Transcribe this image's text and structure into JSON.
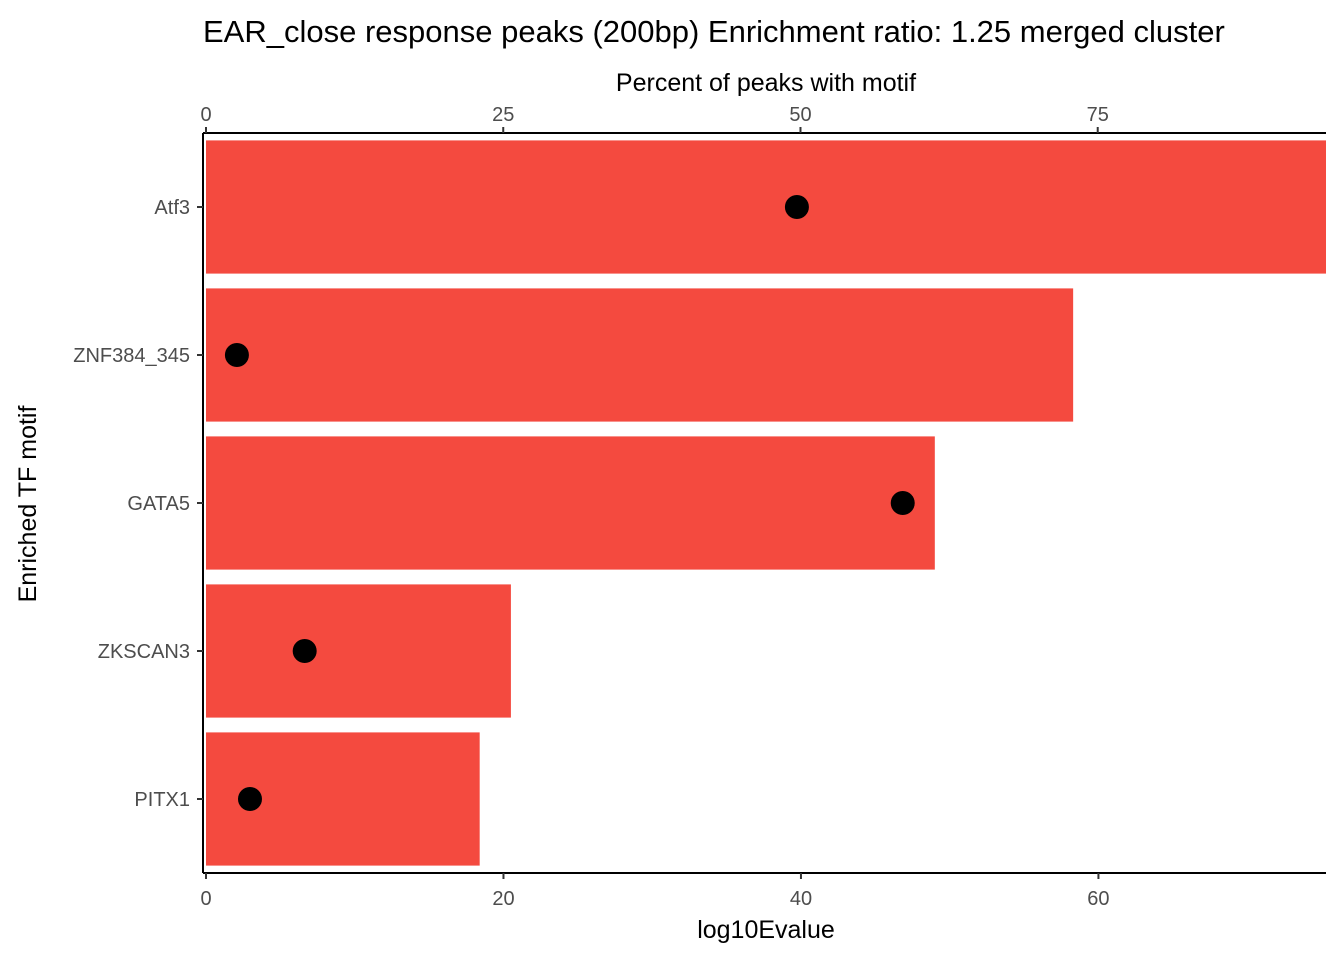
{
  "chart_data": {
    "type": "bar",
    "title": "EAR_close response peaks (200bp) Enrichment ratio: 1.25  merged cluster",
    "xlabel": "log10Evalue",
    "ylabel": "Enriched TF motif",
    "secondary_xlabel": "Percent of peaks with motif",
    "orientation": "horizontal",
    "categories": [
      "Atf3",
      "ZNF384_345",
      "GATA5",
      "ZKSCAN3",
      "PITX1"
    ],
    "series": [
      {
        "values": [
          75.3,
          58.3,
          49.0,
          20.5,
          18.4
        ],
        "color": "#f44a3f"
      },
      {
        "type": "scatter",
        "values": [
          49.7,
          2.6,
          58.6,
          8.3,
          3.7
        ],
        "axis": "secondary",
        "color": "#000000"
      }
    ],
    "xlim": [
      0,
      75.3
    ],
    "secondary_xlim": [
      0,
      94.2
    ],
    "xticks": [
      0,
      20,
      40,
      60
    ],
    "xtick_labels": [
      "0",
      "20",
      "40",
      "60"
    ],
    "secondary_xticks": [
      0,
      25,
      50,
      75
    ],
    "secondary_xtick_labels": [
      "0",
      "25",
      "50",
      "75"
    ],
    "grid": false,
    "legend": "none"
  }
}
